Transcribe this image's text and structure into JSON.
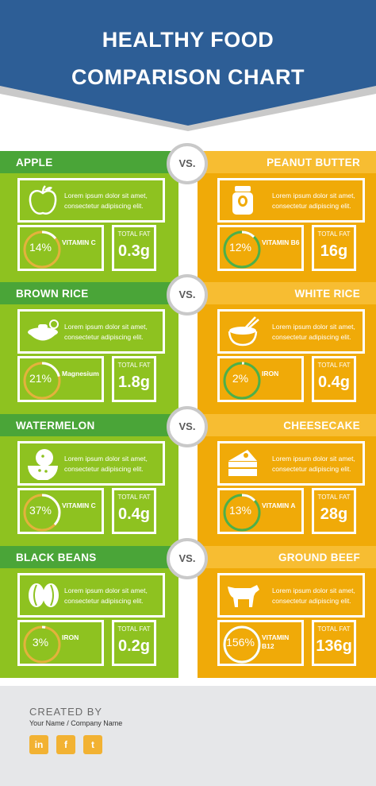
{
  "header": {
    "title_line1": "HEALTHY FOOD",
    "title_line2": "COMPARISON CHART",
    "color": "#2d5e96"
  },
  "colors": {
    "green_header": "#4aa538",
    "green_body": "#8ec220",
    "orange_header": "#f7bd32",
    "orange_body": "#f0aa08",
    "footer_bg": "#e6e7e9",
    "social": "#f2b233"
  },
  "vs_label": "VS.",
  "comparisons": [
    {
      "left": {
        "name": "APPLE",
        "icon": "apple-icon",
        "desc1": "Lorem ipsum dolor sit amet,",
        "desc2": "consectetur adipiscing elit.",
        "percent": "14%",
        "ring_fraction": 0.14,
        "nutrient": "VITAMIN C",
        "fat_label": "TOTAL FAT",
        "fat_value": "0.3g"
      },
      "right": {
        "name": "PEANUT BUTTER",
        "icon": "peanut-butter-jar-icon",
        "desc1": "Lorem ipsum dolor sit amet,",
        "desc2": "consectetur adipiscing elit.",
        "percent": "12%",
        "ring_fraction": 0.12,
        "nutrient": "VITAMIN B6",
        "fat_label": "TOTAL FAT",
        "fat_value": "16g"
      }
    },
    {
      "left": {
        "name": "BROWN RICE",
        "icon": "rice-bowl-icon",
        "desc1": "Lorem ipsum dolor sit amet,",
        "desc2": "consectetur adipiscing elit.",
        "percent": "21%",
        "ring_fraction": 0.21,
        "nutrient": "Magnesium",
        "fat_label": "TOTAL FAT",
        "fat_value": "1.8g"
      },
      "right": {
        "name": "WHITE RICE",
        "icon": "rice-bowl-chopsticks-icon",
        "desc1": "Lorem ipsum dolor sit amet,",
        "desc2": "consectetur adipiscing elit.",
        "percent": "2%",
        "ring_fraction": 0.02,
        "nutrient": "IRON",
        "fat_label": "TOTAL FAT",
        "fat_value": "0.4g"
      }
    },
    {
      "left": {
        "name": "WATERMELON",
        "icon": "watermelon-icon",
        "desc1": "Lorem ipsum dolor sit amet,",
        "desc2": "consectetur adipiscing elit.",
        "percent": "37%",
        "ring_fraction": 0.37,
        "nutrient": "VITAMIN C",
        "fat_label": "TOTAL FAT",
        "fat_value": "0.4g"
      },
      "right": {
        "name": "CHEESECAKE",
        "icon": "cheesecake-icon",
        "desc1": "Lorem ipsum dolor sit amet,",
        "desc2": "consectetur adipiscing elit.",
        "percent": "13%",
        "ring_fraction": 0.13,
        "nutrient": "VITAMIN A",
        "fat_label": "TOTAL FAT",
        "fat_value": "28g"
      }
    },
    {
      "left": {
        "name": "BLACK BEANS",
        "icon": "beans-icon",
        "desc1": "Lorem ipsum dolor sit amet,",
        "desc2": "consectetur adipiscing elit.",
        "percent": "3%",
        "ring_fraction": 0.03,
        "nutrient": "IRON",
        "fat_label": "TOTAL FAT",
        "fat_value": "0.2g"
      },
      "right": {
        "name": "GROUND BEEF",
        "icon": "cow-icon",
        "desc1": "Lorem ipsum dolor sit amet,",
        "desc2": "consectetur adipiscing elit.",
        "percent": "156%",
        "ring_fraction": 1.0,
        "nutrient": "VITAMIN B12",
        "fat_label": "TOTAL FAT",
        "fat_value": "136g"
      }
    }
  ],
  "footer": {
    "created_by": "CREATED  BY",
    "name": "Your Name  /  Company Name",
    "social": [
      {
        "icon": "linkedin-icon",
        "glyph": "in"
      },
      {
        "icon": "facebook-icon",
        "glyph": "f"
      },
      {
        "icon": "twitter-icon",
        "glyph": "t"
      }
    ]
  }
}
